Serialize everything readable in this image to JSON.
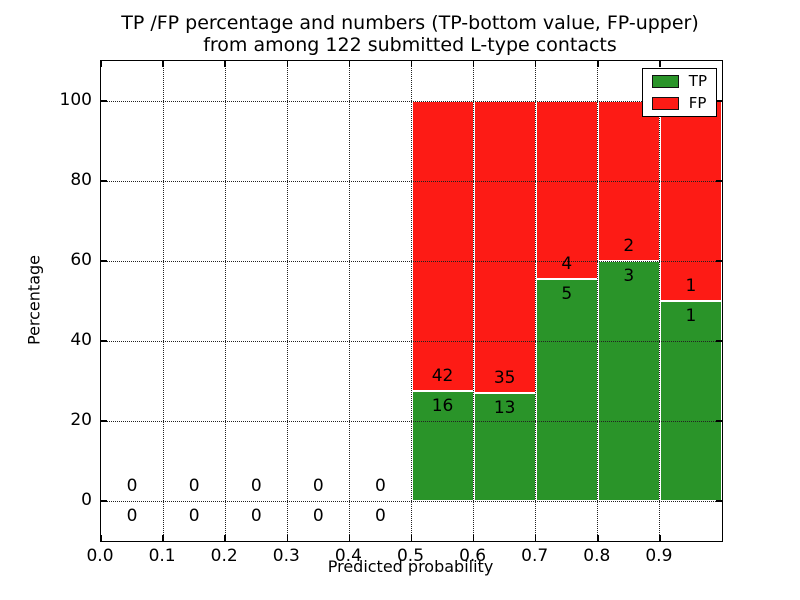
{
  "title": {
    "line1": "TP /FP percentage and numbers (TP-bottom value, FP-upper)",
    "line2": "from among 122 submitted L-type contacts"
  },
  "axes": {
    "xlabel": "Predicted probability",
    "ylabel": "Percentage",
    "x_ticks": [
      {
        "v": 0.0,
        "label": "0.0"
      },
      {
        "v": 0.1,
        "label": "0.1"
      },
      {
        "v": 0.2,
        "label": "0.2"
      },
      {
        "v": 0.3,
        "label": "0.3"
      },
      {
        "v": 0.4,
        "label": "0.4"
      },
      {
        "v": 0.5,
        "label": "0.5"
      },
      {
        "v": 0.6,
        "label": "0.6"
      },
      {
        "v": 0.7,
        "label": "0.7"
      },
      {
        "v": 0.8,
        "label": "0.8"
      },
      {
        "v": 0.9,
        "label": "0.9"
      }
    ],
    "y_ticks": [
      {
        "v": 0,
        "label": "0"
      },
      {
        "v": 20,
        "label": "20"
      },
      {
        "v": 40,
        "label": "40"
      },
      {
        "v": 60,
        "label": "60"
      },
      {
        "v": 80,
        "label": "80"
      },
      {
        "v": 100,
        "label": "100"
      }
    ]
  },
  "legend": {
    "items": [
      {
        "label": "TP",
        "color": "#2a9429"
      },
      {
        "label": "FP",
        "color": "#fd1b15"
      }
    ]
  },
  "colors": {
    "tp": "#2a9429",
    "fp": "#fd1b15",
    "bar_edge": "#ffffff",
    "grid": "#222222",
    "frame": "#000000"
  },
  "chart_data": {
    "type": "bar",
    "stacked": true,
    "title": "TP /FP percentage and numbers (TP-bottom value, FP-upper) from among 122 submitted L-type contacts",
    "xlabel": "Predicted probability",
    "ylabel": "Percentage",
    "xlim": [
      0.0,
      1.0
    ],
    "ylim": [
      -10,
      110
    ],
    "grid": true,
    "legend_position": "upper right",
    "total_submitted": 122,
    "series": [
      {
        "name": "TP",
        "color": "#2a9429"
      },
      {
        "name": "FP",
        "color": "#fd1b15"
      }
    ],
    "bins": [
      {
        "x0": 0.0,
        "x1": 0.1,
        "tp_count": 0,
        "fp_count": 0,
        "tp_pct": 0,
        "fp_pct": 0
      },
      {
        "x0": 0.1,
        "x1": 0.2,
        "tp_count": 0,
        "fp_count": 0,
        "tp_pct": 0,
        "fp_pct": 0
      },
      {
        "x0": 0.2,
        "x1": 0.3,
        "tp_count": 0,
        "fp_count": 0,
        "tp_pct": 0,
        "fp_pct": 0
      },
      {
        "x0": 0.3,
        "x1": 0.4,
        "tp_count": 0,
        "fp_count": 0,
        "tp_pct": 0,
        "fp_pct": 0
      },
      {
        "x0": 0.4,
        "x1": 0.5,
        "tp_count": 0,
        "fp_count": 0,
        "tp_pct": 0,
        "fp_pct": 0
      },
      {
        "x0": 0.5,
        "x1": 0.6,
        "tp_count": 16,
        "fp_count": 42,
        "tp_pct": 27.6,
        "fp_pct": 72.4
      },
      {
        "x0": 0.6,
        "x1": 0.7,
        "tp_count": 13,
        "fp_count": 35,
        "tp_pct": 27.1,
        "fp_pct": 72.9
      },
      {
        "x0": 0.7,
        "x1": 0.8,
        "tp_count": 5,
        "fp_count": 4,
        "tp_pct": 55.6,
        "fp_pct": 44.4
      },
      {
        "x0": 0.8,
        "x1": 0.9,
        "tp_count": 3,
        "fp_count": 2,
        "tp_pct": 60.0,
        "fp_pct": 40.0
      },
      {
        "x0": 0.9,
        "x1": 1.0,
        "tp_count": 1,
        "fp_count": 1,
        "tp_pct": 50.0,
        "fp_pct": 50.0
      }
    ]
  }
}
